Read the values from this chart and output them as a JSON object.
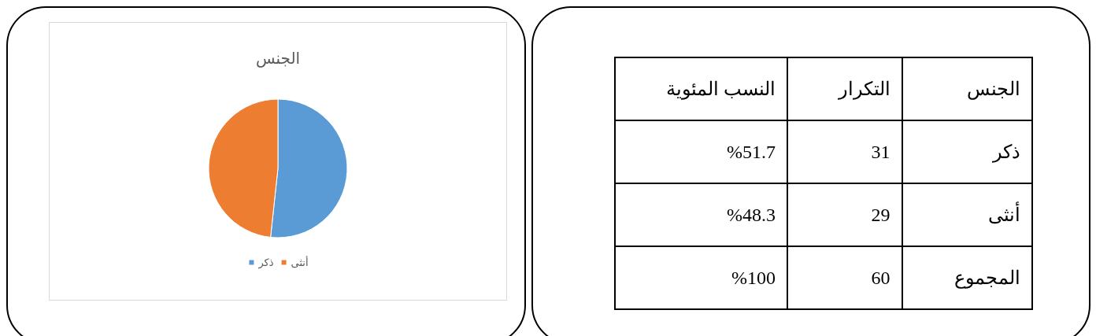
{
  "chart_data": [
    {
      "type": "pie",
      "title": "الجنس",
      "categories": [
        "ذكر",
        "أنثى"
      ],
      "values": [
        51.7,
        48.3
      ],
      "colors": [
        "#5b9bd5",
        "#ed7d31"
      ],
      "legend": "bottom"
    },
    {
      "type": "other",
      "xlabel": "الجنس",
      "data_labels": true,
      "categories": [
        "ذكر",
        "أنثى",
        "المجموع"
      ],
      "series": [
        {
          "name": "التكرار",
          "values": [
            31,
            29,
            60
          ]
        },
        {
          "name": "النسب المئوية",
          "values": [
            51.7,
            48.3,
            100
          ],
          "value_labels": [
            "%51.7",
            "%48.3",
            "%100"
          ]
        }
      ]
    }
  ]
}
